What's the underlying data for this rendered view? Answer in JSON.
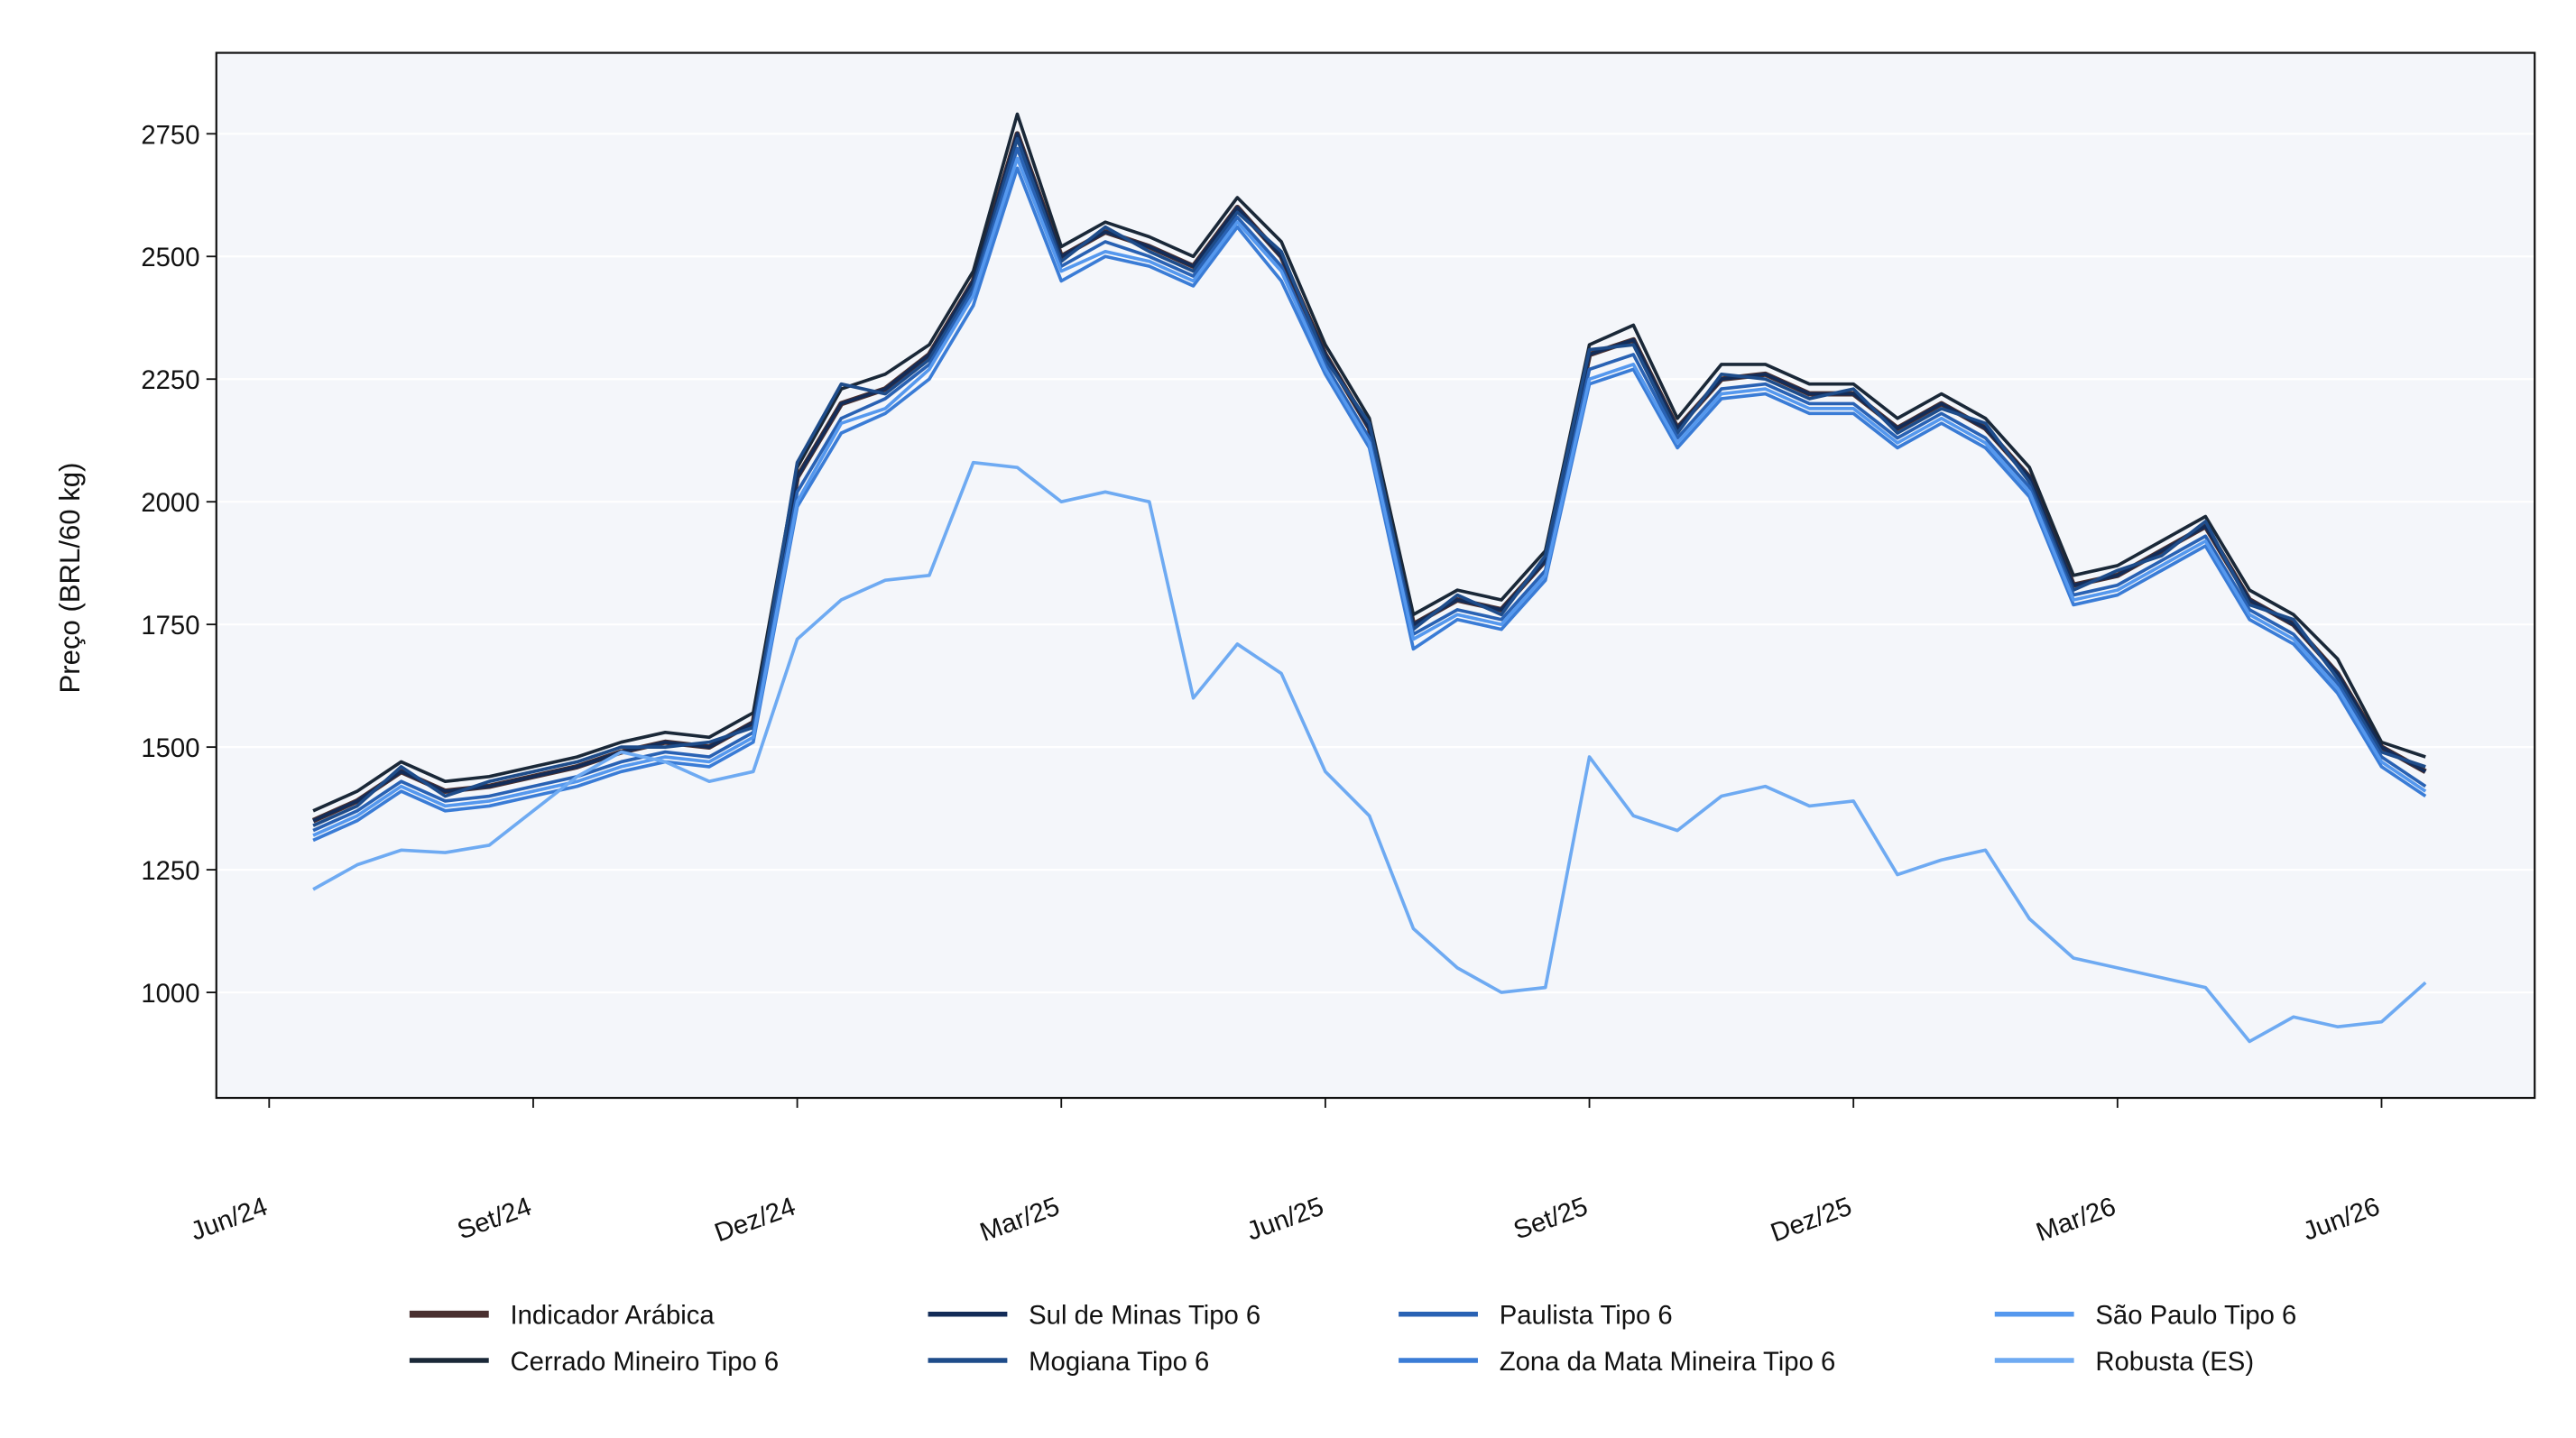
{
  "chart_data": {
    "type": "line",
    "y_label": "Preço (BRL/60 kg)",
    "xlim": [
      -0.6,
      25.74
    ],
    "xticks": [
      {
        "value": 0,
        "label": "Jun/24"
      },
      {
        "value": 3,
        "label": "Set/24"
      },
      {
        "value": 6,
        "label": "Dez/24"
      },
      {
        "value": 9,
        "label": "Mar/25"
      },
      {
        "value": 12,
        "label": "Jun/25"
      },
      {
        "value": 15,
        "label": "Set/25"
      },
      {
        "value": 18,
        "label": "Dez/25"
      },
      {
        "value": 21,
        "label": "Mar/26"
      },
      {
        "value": 24,
        "label": "Jun/26"
      }
    ],
    "ylim": [
      785,
      2915
    ],
    "yticks": [
      1000,
      1250,
      1500,
      1750,
      2000,
      2250,
      2500,
      2750
    ],
    "grid": true,
    "legend": "bottom",
    "x": [
      0.5,
      1,
      1.5,
      2,
      2.5,
      3,
      3.5,
      4,
      4.5,
      5,
      5.5,
      6,
      6.5,
      7,
      7.5,
      8,
      8.5,
      9,
      9.5,
      10,
      10.5,
      11,
      11.5,
      12,
      12.5,
      13,
      13.5,
      14,
      14.5,
      15,
      15.5,
      16,
      16.5,
      17,
      17.5,
      18,
      18.5,
      19,
      19.5,
      20,
      20.5,
      21,
      21.5,
      22,
      22.5,
      23,
      23.5,
      24,
      24.5
    ],
    "series": [
      {
        "name": "Indicador Arábica",
        "color": "#4a3030",
        "width": 3.2,
        "values": [
          1350,
          1390,
          1450,
          1410,
          1420,
          1440,
          1460,
          1490,
          1510,
          1500,
          1550,
          2050,
          2200,
          2230,
          2300,
          2450,
          2750,
          2500,
          2550,
          2520,
          2480,
          2600,
          2500,
          2300,
          2150,
          1750,
          1800,
          1780,
          1880,
          2300,
          2330,
          2150,
          2250,
          2260,
          2220,
          2220,
          2150,
          2200,
          2150,
          2050,
          1830,
          1850,
          1900,
          1950,
          1800,
          1750,
          1650,
          1500,
          1450
        ]
      },
      {
        "name": "Cerrado Mineiro Tipo 6",
        "color": "#1a2838",
        "width": 2,
        "values": [
          1370,
          1410,
          1470,
          1430,
          1440,
          1460,
          1480,
          1510,
          1530,
          1520,
          1570,
          2070,
          2230,
          2260,
          2320,
          2470,
          2790,
          2520,
          2570,
          2540,
          2500,
          2620,
          2530,
          2320,
          2170,
          1770,
          1820,
          1800,
          1900,
          2320,
          2360,
          2170,
          2280,
          2280,
          2240,
          2240,
          2170,
          2220,
          2170,
          2070,
          1850,
          1870,
          1920,
          1970,
          1820,
          1770,
          1680,
          1510,
          1480
        ]
      },
      {
        "name": "Sul de Minas Tipo 6",
        "color": "#132c58",
        "width": 2,
        "values": [
          1350,
          1390,
          1450,
          1410,
          1420,
          1440,
          1460,
          1490,
          1510,
          1500,
          1550,
          2050,
          2200,
          2230,
          2300,
          2450,
          2750,
          2500,
          2550,
          2520,
          2480,
          2600,
          2500,
          2300,
          2150,
          1750,
          1800,
          1780,
          1880,
          2300,
          2330,
          2150,
          2250,
          2260,
          2220,
          2220,
          2150,
          2200,
          2150,
          2050,
          1830,
          1850,
          1900,
          1950,
          1800,
          1750,
          1650,
          1500,
          1450
        ]
      },
      {
        "name": "Mogiana Tipo 6",
        "color": "#1e4c8a",
        "width": 2,
        "values": [
          1340,
          1380,
          1460,
          1400,
          1430,
          1450,
          1470,
          1500,
          1500,
          1510,
          1540,
          2080,
          2240,
          2220,
          2290,
          2440,
          2740,
          2490,
          2560,
          2510,
          2470,
          2590,
          2510,
          2290,
          2160,
          1740,
          1810,
          1770,
          1890,
          2310,
          2320,
          2140,
          2260,
          2250,
          2210,
          2230,
          2140,
          2190,
          2160,
          2040,
          1820,
          1860,
          1890,
          1960,
          1790,
          1760,
          1640,
          1490,
          1460
        ]
      },
      {
        "name": "Paulista Tipo 6",
        "color": "#2962b4",
        "width": 2,
        "values": [
          1330,
          1370,
          1430,
          1390,
          1400,
          1420,
          1440,
          1470,
          1490,
          1480,
          1530,
          2020,
          2170,
          2210,
          2280,
          2430,
          2720,
          2480,
          2530,
          2500,
          2460,
          2580,
          2480,
          2280,
          2130,
          1730,
          1780,
          1760,
          1860,
          2270,
          2300,
          2130,
          2230,
          2240,
          2200,
          2200,
          2130,
          2180,
          2130,
          2030,
          1810,
          1830,
          1880,
          1930,
          1780,
          1730,
          1630,
          1480,
          1420
        ]
      },
      {
        "name": "Zona da Mata Mineira Tipo 6",
        "color": "#3a7cd6",
        "width": 2,
        "values": [
          1310,
          1350,
          1410,
          1370,
          1380,
          1400,
          1420,
          1450,
          1470,
          1460,
          1510,
          1990,
          2140,
          2180,
          2250,
          2400,
          2680,
          2450,
          2500,
          2480,
          2440,
          2560,
          2450,
          2260,
          2110,
          1700,
          1760,
          1740,
          1840,
          2240,
          2270,
          2110,
          2210,
          2220,
          2180,
          2180,
          2110,
          2160,
          2110,
          2010,
          1790,
          1810,
          1860,
          1910,
          1760,
          1710,
          1610,
          1460,
          1400
        ]
      },
      {
        "name": "São Paulo Tipo 6",
        "color": "#5598ee",
        "width": 2,
        "values": [
          1320,
          1360,
          1420,
          1380,
          1390,
          1410,
          1430,
          1460,
          1480,
          1470,
          1520,
          2000,
          2160,
          2190,
          2270,
          2420,
          2700,
          2470,
          2510,
          2490,
          2450,
          2570,
          2470,
          2270,
          2120,
          1720,
          1770,
          1750,
          1850,
          2250,
          2280,
          2120,
          2220,
          2230,
          2190,
          2190,
          2120,
          2170,
          2120,
          2020,
          1800,
          1820,
          1870,
          1920,
          1770,
          1720,
          1620,
          1470,
          1410
        ]
      },
      {
        "name": "Robusta (ES)",
        "color": "#6eaaf2",
        "width": 2,
        "values": [
          1210,
          1260,
          1290,
          1285,
          1300,
          1370,
          1440,
          1490,
          1470,
          1430,
          1450,
          1720,
          1800,
          1840,
          1850,
          2080,
          2070,
          2000,
          2020,
          2000,
          1600,
          1710,
          1650,
          1450,
          1360,
          1130,
          1050,
          1000,
          1010,
          1480,
          1360,
          1330,
          1400,
          1420,
          1380,
          1390,
          1240,
          1270,
          1290,
          1150,
          1070,
          1050,
          1030,
          1010,
          900,
          950,
          930,
          940,
          1020
        ]
      }
    ]
  }
}
